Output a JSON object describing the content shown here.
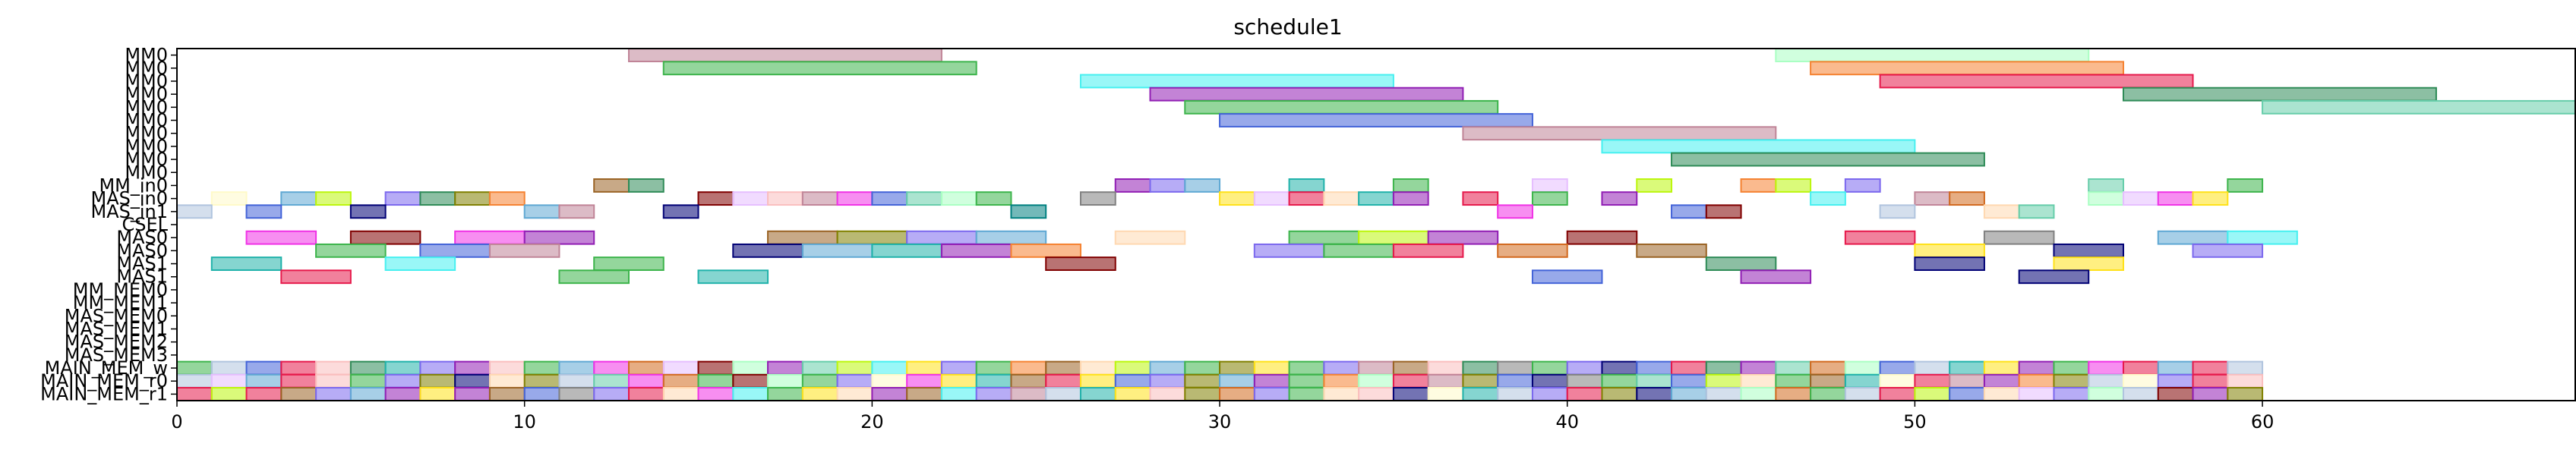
{
  "chart_data": {
    "type": "gantt",
    "title": "schedule1",
    "xlim": [
      0,
      69
    ],
    "xticks": [
      0,
      10,
      20,
      30,
      40,
      50,
      60
    ],
    "rows": [
      "MM0",
      "MM0",
      "MM0",
      "MM0",
      "MM0",
      "MM0",
      "MM0",
      "MM0",
      "MM0",
      "MM0",
      "MM_in0",
      "MAS_in0",
      "MAS_in1",
      "CSEL",
      "MAS0",
      "MAS0",
      "MAS1",
      "MAS1",
      "MM_MEM0",
      "MM_MEM1",
      "MAS_MEM0",
      "MAS_MEM1",
      "MAS_MEM2",
      "MAS_MEM3",
      "MAIN_MEM_w",
      "MAIN_MEM_r0",
      "MAIN_MEM_r1"
    ],
    "palette": [
      "#e6194b",
      "#3cb44b",
      "#ffe119",
      "#4363d8",
      "#f58231",
      "#911eb4",
      "#46f0f0",
      "#f032e6",
      "#bcf60c",
      "#fabebe",
      "#008080",
      "#e6beff",
      "#9a6324",
      "#fffac8",
      "#800000",
      "#aaffc3",
      "#808000",
      "#ffd8b1",
      "#000075",
      "#808080",
      "#5fa8d3",
      "#c08497",
      "#7b68ee",
      "#20b2aa",
      "#d2691e",
      "#66cdaa",
      "#b0c4de",
      "#2e8b57"
    ],
    "bars": [
      {
        "row": 0,
        "start": 13,
        "end": 22,
        "color": "#c08497"
      },
      {
        "row": 0,
        "start": 46,
        "end": 55,
        "color": "#aaffc3"
      },
      {
        "row": 1,
        "start": 14,
        "end": 23,
        "color": "#3cb44b"
      },
      {
        "row": 1,
        "start": 47,
        "end": 56,
        "color": "#f58231"
      },
      {
        "row": 2,
        "start": 26,
        "end": 35,
        "color": "#46f0f0"
      },
      {
        "row": 2,
        "start": 49,
        "end": 58,
        "color": "#e6194b"
      },
      {
        "row": 3,
        "start": 28,
        "end": 37,
        "color": "#911eb4"
      },
      {
        "row": 3,
        "start": 56,
        "end": 65,
        "color": "#2e8b57"
      },
      {
        "row": 4,
        "start": 29,
        "end": 38,
        "color": "#3cb44b"
      },
      {
        "row": 4,
        "start": 60,
        "end": 69,
        "color": "#66cdaa"
      },
      {
        "row": 5,
        "start": 30,
        "end": 39,
        "color": "#4363d8"
      },
      {
        "row": 6,
        "start": 37,
        "end": 46,
        "color": "#c08497"
      },
      {
        "row": 7,
        "start": 41,
        "end": 50,
        "color": "#46f0f0"
      },
      {
        "row": 8,
        "start": 43,
        "end": 52,
        "color": "#2e8b57"
      },
      {
        "row": 10,
        "start": 12,
        "end": 13,
        "color": "#9a6324"
      },
      {
        "row": 10,
        "start": 13,
        "end": 14,
        "color": "#2e8b57"
      },
      {
        "row": 10,
        "start": 27,
        "end": 28,
        "color": "#911eb4"
      },
      {
        "row": 10,
        "start": 28,
        "end": 29,
        "color": "#7b68ee"
      },
      {
        "row": 10,
        "start": 29,
        "end": 30,
        "color": "#5fa8d3"
      },
      {
        "row": 10,
        "start": 32,
        "end": 33,
        "color": "#20b2aa"
      },
      {
        "row": 10,
        "start": 35,
        "end": 36,
        "color": "#3cb44b"
      },
      {
        "row": 10,
        "start": 39,
        "end": 40,
        "color": "#e6beff"
      },
      {
        "row": 10,
        "start": 42,
        "end": 43,
        "color": "#bcf60c"
      },
      {
        "row": 10,
        "start": 45,
        "end": 46,
        "color": "#f58231"
      },
      {
        "row": 10,
        "start": 46,
        "end": 47,
        "color": "#bcf60c"
      },
      {
        "row": 10,
        "start": 48,
        "end": 49,
        "color": "#7b68ee"
      },
      {
        "row": 10,
        "start": 55,
        "end": 56,
        "color": "#66cdaa"
      },
      {
        "row": 10,
        "start": 59,
        "end": 60,
        "color": "#3cb44b"
      },
      {
        "row": 11,
        "start": 1,
        "end": 2,
        "color": "#fffac8"
      },
      {
        "row": 11,
        "start": 3,
        "end": 4,
        "color": "#5fa8d3"
      },
      {
        "row": 11,
        "start": 4,
        "end": 5,
        "color": "#bcf60c"
      },
      {
        "row": 11,
        "start": 6,
        "end": 7,
        "color": "#7b68ee"
      },
      {
        "row": 11,
        "start": 7,
        "end": 8,
        "color": "#2e8b57"
      },
      {
        "row": 11,
        "start": 8,
        "end": 9,
        "color": "#808000"
      },
      {
        "row": 11,
        "start": 9,
        "end": 10,
        "color": "#f58231"
      },
      {
        "row": 11,
        "start": 15,
        "end": 16,
        "color": "#800000"
      },
      {
        "row": 11,
        "start": 16,
        "end": 17,
        "color": "#e6beff"
      },
      {
        "row": 11,
        "start": 17,
        "end": 18,
        "color": "#fabebe"
      },
      {
        "row": 11,
        "start": 18,
        "end": 19,
        "color": "#c08497"
      },
      {
        "row": 11,
        "start": 19,
        "end": 20,
        "color": "#f032e6"
      },
      {
        "row": 11,
        "start": 20,
        "end": 21,
        "color": "#4363d8"
      },
      {
        "row": 11,
        "start": 21,
        "end": 22,
        "color": "#66cdaa"
      },
      {
        "row": 11,
        "start": 22,
        "end": 23,
        "color": "#aaffc3"
      },
      {
        "row": 11,
        "start": 23,
        "end": 24,
        "color": "#3cb44b"
      },
      {
        "row": 11,
        "start": 26,
        "end": 27,
        "color": "#808080"
      },
      {
        "row": 11,
        "start": 30,
        "end": 31,
        "color": "#ffe119"
      },
      {
        "row": 11,
        "start": 31,
        "end": 32,
        "color": "#e6beff"
      },
      {
        "row": 11,
        "start": 32,
        "end": 33,
        "color": "#e6194b"
      },
      {
        "row": 11,
        "start": 33,
        "end": 34,
        "color": "#ffd8b1"
      },
      {
        "row": 11,
        "start": 34,
        "end": 35,
        "color": "#20b2aa"
      },
      {
        "row": 11,
        "start": 35,
        "end": 36,
        "color": "#911eb4"
      },
      {
        "row": 11,
        "start": 37,
        "end": 38,
        "color": "#e6194b"
      },
      {
        "row": 11,
        "start": 39,
        "end": 40,
        "color": "#3cb44b"
      },
      {
        "row": 11,
        "start": 41,
        "end": 42,
        "color": "#911eb4"
      },
      {
        "row": 11,
        "start": 47,
        "end": 48,
        "color": "#46f0f0"
      },
      {
        "row": 11,
        "start": 50,
        "end": 51,
        "color": "#c08497"
      },
      {
        "row": 11,
        "start": 51,
        "end": 52,
        "color": "#d2691e"
      },
      {
        "row": 11,
        "start": 55,
        "end": 56,
        "color": "#aaffc3"
      },
      {
        "row": 11,
        "start": 56,
        "end": 57,
        "color": "#e6beff"
      },
      {
        "row": 11,
        "start": 57,
        "end": 58,
        "color": "#f032e6"
      },
      {
        "row": 11,
        "start": 58,
        "end": 59,
        "color": "#ffe119"
      },
      {
        "row": 12,
        "start": 0,
        "end": 1,
        "color": "#b0c4de"
      },
      {
        "row": 12,
        "start": 2,
        "end": 3,
        "color": "#4363d8"
      },
      {
        "row": 12,
        "start": 5,
        "end": 6,
        "color": "#000075"
      },
      {
        "row": 12,
        "start": 10,
        "end": 11,
        "color": "#5fa8d3"
      },
      {
        "row": 12,
        "start": 11,
        "end": 12,
        "color": "#c08497"
      },
      {
        "row": 12,
        "start": 14,
        "end": 15,
        "color": "#000075"
      },
      {
        "row": 12,
        "start": 24,
        "end": 25,
        "color": "#008080"
      },
      {
        "row": 12,
        "start": 38,
        "end": 39,
        "color": "#f032e6"
      },
      {
        "row": 12,
        "start": 43,
        "end": 44,
        "color": "#4363d8"
      },
      {
        "row": 12,
        "start": 44,
        "end": 45,
        "color": "#800000"
      },
      {
        "row": 12,
        "start": 49,
        "end": 50,
        "color": "#b0c4de"
      },
      {
        "row": 12,
        "start": 52,
        "end": 53,
        "color": "#ffd8b1"
      },
      {
        "row": 12,
        "start": 53,
        "end": 54,
        "color": "#66cdaa"
      },
      {
        "row": 14,
        "start": 2,
        "end": 4,
        "color": "#f032e6"
      },
      {
        "row": 14,
        "start": 5,
        "end": 7,
        "color": "#800000"
      },
      {
        "row": 14,
        "start": 8,
        "end": 10,
        "color": "#f032e6"
      },
      {
        "row": 14,
        "start": 10,
        "end": 12,
        "color": "#911eb4"
      },
      {
        "row": 14,
        "start": 17,
        "end": 19,
        "color": "#9a6324"
      },
      {
        "row": 14,
        "start": 19,
        "end": 21,
        "color": "#808000"
      },
      {
        "row": 14,
        "start": 21,
        "end": 23,
        "color": "#7b68ee"
      },
      {
        "row": 14,
        "start": 23,
        "end": 25,
        "color": "#5fa8d3"
      },
      {
        "row": 14,
        "start": 27,
        "end": 29,
        "color": "#ffd8b1"
      },
      {
        "row": 14,
        "start": 32,
        "end": 34,
        "color": "#3cb44b"
      },
      {
        "row": 14,
        "start": 34,
        "end": 36,
        "color": "#bcf60c"
      },
      {
        "row": 14,
        "start": 36,
        "end": 38,
        "color": "#911eb4"
      },
      {
        "row": 14,
        "start": 40,
        "end": 42,
        "color": "#800000"
      },
      {
        "row": 14,
        "start": 48,
        "end": 50,
        "color": "#e6194b"
      },
      {
        "row": 14,
        "start": 52,
        "end": 54,
        "color": "#808080"
      },
      {
        "row": 14,
        "start": 57,
        "end": 59,
        "color": "#5fa8d3"
      },
      {
        "row": 14,
        "start": 59,
        "end": 61,
        "color": "#46f0f0"
      },
      {
        "row": 15,
        "start": 4,
        "end": 6,
        "color": "#3cb44b"
      },
      {
        "row": 15,
        "start": 7,
        "end": 9,
        "color": "#4363d8"
      },
      {
        "row": 15,
        "start": 9,
        "end": 11,
        "color": "#c08497"
      },
      {
        "row": 15,
        "start": 16,
        "end": 18,
        "color": "#000075"
      },
      {
        "row": 15,
        "start": 18,
        "end": 20,
        "color": "#5fa8d3"
      },
      {
        "row": 15,
        "start": 20,
        "end": 22,
        "color": "#20b2aa"
      },
      {
        "row": 15,
        "start": 22,
        "end": 24,
        "color": "#911eb4"
      },
      {
        "row": 15,
        "start": 24,
        "end": 26,
        "color": "#f58231"
      },
      {
        "row": 15,
        "start": 31,
        "end": 33,
        "color": "#7b68ee"
      },
      {
        "row": 15,
        "start": 33,
        "end": 35,
        "color": "#3cb44b"
      },
      {
        "row": 15,
        "start": 35,
        "end": 37,
        "color": "#e6194b"
      },
      {
        "row": 15,
        "start": 38,
        "end": 40,
        "color": "#d2691e"
      },
      {
        "row": 15,
        "start": 42,
        "end": 44,
        "color": "#9a6324"
      },
      {
        "row": 15,
        "start": 50,
        "end": 52,
        "color": "#ffe119"
      },
      {
        "row": 15,
        "start": 54,
        "end": 56,
        "color": "#000075"
      },
      {
        "row": 15,
        "start": 58,
        "end": 60,
        "color": "#7b68ee"
      },
      {
        "row": 16,
        "start": 1,
        "end": 3,
        "color": "#20b2aa"
      },
      {
        "row": 16,
        "start": 6,
        "end": 8,
        "color": "#46f0f0"
      },
      {
        "row": 16,
        "start": 12,
        "end": 14,
        "color": "#3cb44b"
      },
      {
        "row": 16,
        "start": 25,
        "end": 27,
        "color": "#800000"
      },
      {
        "row": 16,
        "start": 44,
        "end": 46,
        "color": "#2e8b57"
      },
      {
        "row": 16,
        "start": 50,
        "end": 52,
        "color": "#000075"
      },
      {
        "row": 16,
        "start": 54,
        "end": 56,
        "color": "#ffe119"
      },
      {
        "row": 17,
        "start": 3,
        "end": 5,
        "color": "#e6194b"
      },
      {
        "row": 17,
        "start": 11,
        "end": 13,
        "color": "#3cb44b"
      },
      {
        "row": 17,
        "start": 15,
        "end": 17,
        "color": "#20b2aa"
      },
      {
        "row": 17,
        "start": 39,
        "end": 41,
        "color": "#4363d8"
      },
      {
        "row": 17,
        "start": 45,
        "end": 47,
        "color": "#911eb4"
      },
      {
        "row": 17,
        "start": 53,
        "end": 55,
        "color": "#000075"
      }
    ],
    "memory_rows": {
      "row_w": 24,
      "row_r0": 25,
      "row_r1": 26,
      "colors_w": [
        "#3cb44b",
        "#b0c4de",
        "#4363d8",
        "#e6194b",
        "#fabebe",
        "#2e8b57",
        "#20b2aa",
        "#7b68ee",
        "#911eb4",
        "#fabebe",
        "#3cb44b",
        "#5fa8d3",
        "#f032e6",
        "#d2691e",
        "#e6beff",
        "#800000",
        "#aaffc3",
        "#911eb4",
        "#66cdaa",
        "#bcf60c",
        "#46f0f0",
        "#ffe119",
        "#7b68ee",
        "#3cb44b",
        "#f58231",
        "#9a6324",
        "#ffd8b1",
        "#bcf60c",
        "#5fa8d3",
        "#3cb44b",
        "#808000",
        "#ffe119",
        "#3cb44b",
        "#7b68ee",
        "#c08497",
        "#9a6324",
        "#fabebe",
        "#2e8b57",
        "#808080",
        "#3cb44b",
        "#7b68ee",
        "#000075",
        "#4363d8",
        "#e6194b",
        "#2e8b57",
        "#911eb4",
        "#66cdaa",
        "#d2691e",
        "#aaffc3",
        "#4363d8",
        "#b0c4de",
        "#20b2aa",
        "#ffe119",
        "#911eb4",
        "#3cb44b",
        "#f032e6",
        "#e6194b",
        "#5fa8d3",
        "#e6194b",
        "#b0c4de"
      ],
      "colors_r0": [
        "#b0c4de",
        "#e6beff",
        "#5fa8d3",
        "#e6194b",
        "#fabebe",
        "#3cb44b",
        "#7b68ee",
        "#808000",
        "#000075",
        "#ffd8b1",
        "#808000",
        "#b0c4de",
        "#66cdaa",
        "#f032e6",
        "#d2691e",
        "#3cb44b",
        "#800000",
        "#aaffc3",
        "#3cb44b",
        "#7b68ee",
        "#fffac8",
        "#f032e6",
        "#ffe119",
        "#20b2aa",
        "#9a6324",
        "#e6194b",
        "#ffe119",
        "#4363d8",
        "#7b68ee",
        "#808000",
        "#5fa8d3",
        "#911eb4",
        "#3cb44b",
        "#f58231",
        "#aaffc3",
        "#e6194b",
        "#c08497",
        "#808000",
        "#4363d8",
        "#000075",
        "#808080",
        "#3cb44b",
        "#66cdaa",
        "#4363d8",
        "#bcf60c",
        "#ffd8b1",
        "#3cb44b",
        "#9a6324",
        "#20b2aa",
        "#fffac8",
        "#e6194b",
        "#c08497",
        "#911eb4",
        "#f58231",
        "#808000",
        "#b0c4de",
        "#fffac8",
        "#7b68ee",
        "#e6194b",
        "#fabebe"
      ],
      "colors_r1": [
        "#e6194b",
        "#bcf60c",
        "#e6194b",
        "#9a6324",
        "#7b68ee",
        "#5fa8d3",
        "#911eb4",
        "#ffe119",
        "#911eb4",
        "#9a6324",
        "#4363d8",
        "#808080",
        "#7b68ee",
        "#e6194b",
        "#ffd8b1",
        "#f032e6",
        "#46f0f0",
        "#3cb44b",
        "#ffe119",
        "#ffd8b1",
        "#911eb4",
        "#9a6324",
        "#46f0f0",
        "#7b68ee",
        "#c08497",
        "#b0c4de",
        "#20b2aa",
        "#ffe119",
        "#fabebe",
        "#808000",
        "#d2691e",
        "#7b68ee",
        "#3cb44b",
        "#ffd8b1",
        "#fabebe",
        "#000075",
        "#fffac8",
        "#20b2aa",
        "#b0c4de",
        "#7b68ee",
        "#e6194b",
        "#808000",
        "#000075",
        "#5fa8d3",
        "#b0c4de",
        "#aaffc3",
        "#d2691e",
        "#3cb44b",
        "#b0c4de",
        "#e6194b",
        "#bcf60c",
        "#4363d8",
        "#ffd8b1",
        "#e6beff",
        "#7b68ee",
        "#aaffc3",
        "#b0c4de",
        "#800000",
        "#911eb4",
        "#808000"
      ]
    },
    "grid": false,
    "legend": "none"
  }
}
